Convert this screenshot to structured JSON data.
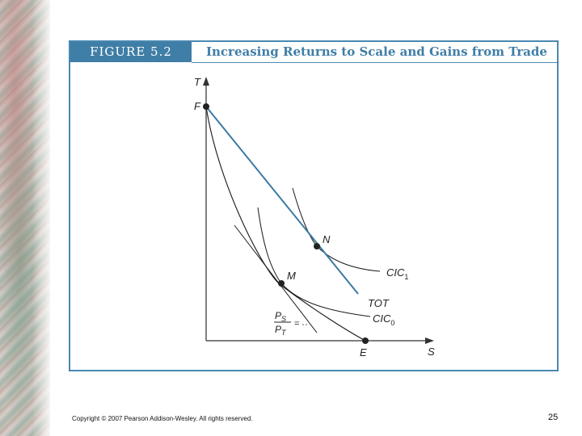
{
  "figure": {
    "label": "FIGURE 5.2",
    "title": "Increasing Returns to Scale and Gains from Trade"
  },
  "diagram": {
    "axis_y_label": "T",
    "axis_x_label": "S",
    "point_f": "F",
    "point_e": "E",
    "point_m": "M",
    "point_n": "N",
    "curve_cic1": "CIC",
    "curve_cic1_sub": "1",
    "curve_cic0": "CIC",
    "curve_cic0_sub": "0",
    "line_tot": "TOT",
    "price_ratio_num": "P",
    "price_ratio_num_sub": "S",
    "price_ratio_den": "P",
    "price_ratio_den_sub": "T",
    "price_ratio_eq": "="
  },
  "colors": {
    "accent": "#3f7ea6",
    "tot_line": "#3d7aa3",
    "curve": "#1a1a1a",
    "axis": "#555555"
  },
  "footer": {
    "copyright": "Copyright © 2007 Pearson Addison-Wesley. All rights reserved.",
    "page_number": "25"
  }
}
